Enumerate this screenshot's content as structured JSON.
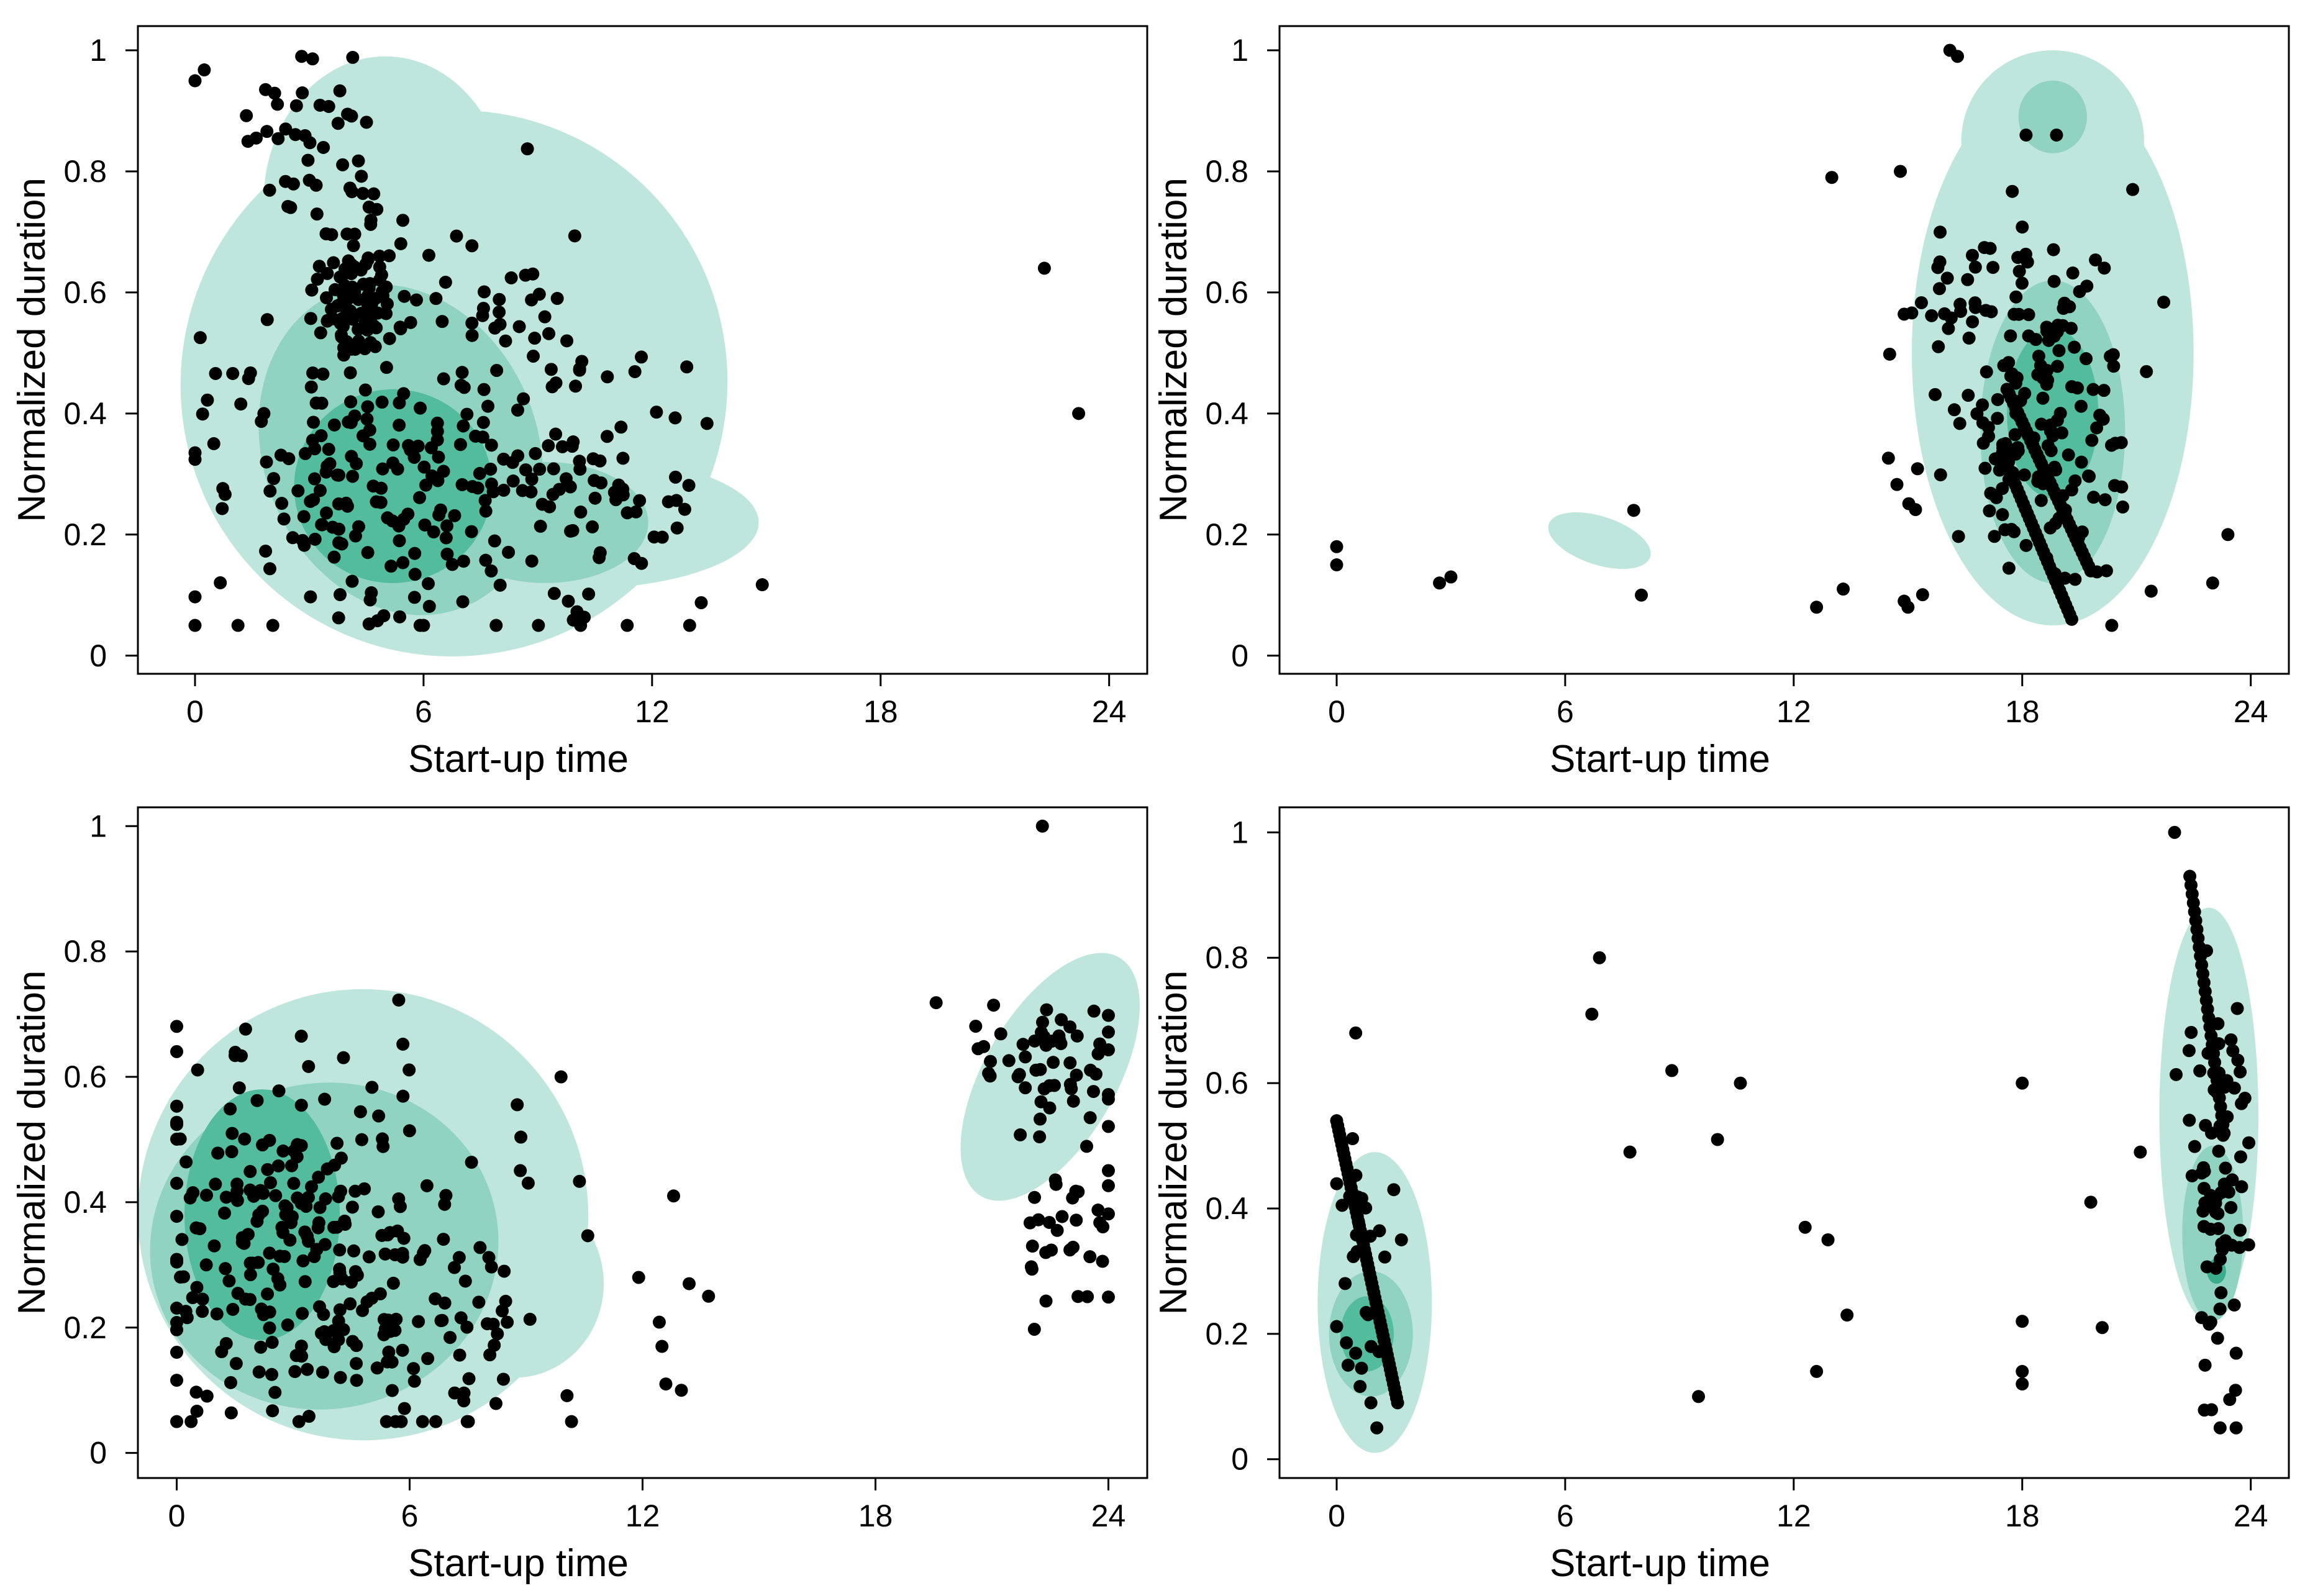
{
  "figure": {
    "panels": [
      "top-left",
      "top-right",
      "bottom-left",
      "bottom-right"
    ]
  },
  "colors": {
    "density_light": "#bfe6dc",
    "density_mid": "#8fd3c0",
    "density_dark": "#52bc9d",
    "density_core": "#3aae8c",
    "points": "#000000",
    "frame": "#000000"
  },
  "chart_data": [
    {
      "type": "scatter",
      "panel": "top-left",
      "xlabel": "Start-up time",
      "ylabel": "Normalized duration",
      "xlim": [
        -1.5,
        25
      ],
      "ylim": [
        -0.03,
        1.04
      ],
      "xticks": [
        0,
        6,
        12,
        18,
        24
      ],
      "xtick_labels": [
        "0",
        "6",
        "12",
        "18",
        "24"
      ],
      "yticks": [
        0,
        0.2,
        0.4,
        0.6,
        0.8,
        1
      ],
      "ytick_labels": [
        "0",
        "0.2",
        "0.4",
        "0.6",
        "0.8",
        "1"
      ],
      "outliers": [
        [
          22.3,
          0.64
        ],
        [
          23.2,
          0.4
        ]
      ],
      "clusters": [
        {
          "cx": 4.3,
          "cy": 0.6,
          "sx": 0.5,
          "sy": 0.06,
          "n": 90,
          "seed": 11
        },
        {
          "cx": 4.5,
          "cy": 0.28,
          "sx": 2.3,
          "sy": 0.14,
          "n": 160,
          "seed": 12
        },
        {
          "cx": 9.5,
          "cy": 0.27,
          "sx": 2.3,
          "sy": 0.12,
          "n": 110,
          "seed": 13
        },
        {
          "cx": 3.6,
          "cy": 0.85,
          "sx": 1.4,
          "sy": 0.08,
          "n": 45,
          "seed": 14
        },
        {
          "cx": 8.2,
          "cy": 0.58,
          "sx": 1.5,
          "sy": 0.1,
          "n": 40,
          "seed": 15
        }
      ],
      "density_regions": [
        {
          "level": "light",
          "cx": 6.8,
          "cy": 0.45,
          "rx": 7.2,
          "ry": 0.45,
          "rot": 42
        },
        {
          "level": "light",
          "cx": 5.0,
          "cy": 0.75,
          "rx": 3.2,
          "ry": 0.24,
          "rot": 0
        },
        {
          "level": "light",
          "cx": 10.0,
          "cy": 0.22,
          "rx": 4.8,
          "ry": 0.11,
          "rot": 0
        },
        {
          "level": "mid",
          "cx": 5.4,
          "cy": 0.34,
          "rx": 3.6,
          "ry": 0.28,
          "rot": 22
        },
        {
          "level": "mid",
          "cx": 9.2,
          "cy": 0.22,
          "rx": 2.7,
          "ry": 0.1,
          "rot": 0
        },
        {
          "level": "dark",
          "cx": 5.2,
          "cy": 0.28,
          "rx": 2.6,
          "ry": 0.16,
          "rot": 8
        }
      ]
    },
    {
      "type": "scatter",
      "panel": "top-right",
      "xlabel": "Start-up time",
      "ylabel": "Normalized duration",
      "xlim": [
        -1.5,
        25
      ],
      "ylim": [
        -0.03,
        1.04
      ],
      "xticks": [
        0,
        6,
        12,
        18,
        24
      ],
      "xtick_labels": [
        "0",
        "6",
        "12",
        "18",
        "24"
      ],
      "yticks": [
        0,
        0.2,
        0.4,
        0.6,
        0.8,
        1
      ],
      "ytick_labels": [
        "0",
        "0.2",
        "0.4",
        "0.6",
        "0.8",
        "1"
      ],
      "outliers": [
        [
          0,
          0.18
        ],
        [
          0,
          0.15
        ],
        [
          2.7,
          0.12
        ],
        [
          3.0,
          0.13
        ],
        [
          7.8,
          0.24
        ],
        [
          8.0,
          0.1
        ],
        [
          12.6,
          0.08
        ],
        [
          13.3,
          0.11
        ],
        [
          13.0,
          0.79
        ],
        [
          14.8,
          0.8
        ],
        [
          16.1,
          1.0
        ],
        [
          16.3,
          0.99
        ],
        [
          18.1,
          0.86
        ],
        [
          18.9,
          0.86
        ],
        [
          20.9,
          0.77
        ],
        [
          23.4,
          0.2
        ],
        [
          23.0,
          0.12
        ],
        [
          15.0,
          0.08
        ],
        [
          14.9,
          0.09
        ]
      ],
      "lines": [
        {
          "x0": 17.6,
          "y0": 0.44,
          "x1": 19.8,
          "y1": 0.14,
          "n": 40
        },
        {
          "x0": 17.5,
          "y0": 0.33,
          "x1": 19.3,
          "y1": 0.06,
          "n": 35
        }
      ],
      "clusters": [
        {
          "cx": 18.5,
          "cy": 0.38,
          "sx": 1.3,
          "sy": 0.15,
          "n": 170,
          "seed": 21
        },
        {
          "cx": 16.0,
          "cy": 0.55,
          "sx": 0.8,
          "sy": 0.08,
          "n": 25,
          "seed": 22
        }
      ],
      "density_regions": [
        {
          "level": "light",
          "cx": 18.8,
          "cy": 0.5,
          "rx": 3.7,
          "ry": 0.45,
          "rot": 0
        },
        {
          "level": "light",
          "cx": 18.8,
          "cy": 0.85,
          "rx": 2.4,
          "ry": 0.15,
          "rot": 0
        },
        {
          "level": "light",
          "cx": 6.9,
          "cy": 0.19,
          "rx": 1.4,
          "ry": 0.04,
          "rot": -18
        },
        {
          "level": "mid",
          "cx": 18.8,
          "cy": 0.37,
          "rx": 1.9,
          "ry": 0.25,
          "rot": 0
        },
        {
          "level": "mid",
          "cx": 18.8,
          "cy": 0.89,
          "rx": 0.9,
          "ry": 0.06,
          "rot": 0
        },
        {
          "level": "dark",
          "cx": 18.8,
          "cy": 0.4,
          "rx": 1.2,
          "ry": 0.14,
          "rot": 0
        }
      ]
    },
    {
      "type": "scatter",
      "panel": "bottom-left",
      "xlabel": "Start-up time",
      "ylabel": "Normalized duration",
      "xlim": [
        -1.0,
        25
      ],
      "ylim": [
        -0.04,
        1.03
      ],
      "xticks": [
        0,
        6,
        12,
        18,
        24
      ],
      "xtick_labels": [
        "0",
        "6",
        "12",
        "18",
        "24"
      ],
      "yticks": [
        0,
        0.2,
        0.4,
        0.6,
        0.8,
        1
      ],
      "ytick_labels": [
        "0",
        "0.2",
        "0.4",
        "0.6",
        "0.8",
        "1"
      ],
      "outliers": [
        [
          22.3,
          1.0
        ],
        [
          12.8,
          0.41
        ],
        [
          12.5,
          0.17
        ],
        [
          12.6,
          0.11
        ],
        [
          13.0,
          0.1
        ],
        [
          13.2,
          0.27
        ],
        [
          13.7,
          0.25
        ],
        [
          11.9,
          0.28
        ],
        [
          9.9,
          0.6
        ]
      ],
      "clusters": [
        {
          "cx": 2.5,
          "cy": 0.33,
          "sx": 2.0,
          "sy": 0.16,
          "n": 210,
          "seed": 31
        },
        {
          "cx": 6.5,
          "cy": 0.25,
          "sx": 2.2,
          "sy": 0.13,
          "n": 90,
          "seed": 32
        },
        {
          "cx": 22.5,
          "cy": 0.62,
          "sx": 1.0,
          "sy": 0.05,
          "n": 50,
          "seed": 33
        },
        {
          "cx": 23.0,
          "cy": 0.38,
          "sx": 0.8,
          "sy": 0.12,
          "n": 40,
          "seed": 34
        }
      ],
      "density_regions": [
        {
          "level": "light",
          "cx": 4.8,
          "cy": 0.38,
          "rx": 5.8,
          "ry": 0.36,
          "rot": 20
        },
        {
          "level": "light",
          "cx": 8.7,
          "cy": 0.27,
          "rx": 2.3,
          "ry": 0.15,
          "rot": 0
        },
        {
          "level": "light",
          "cx": 22.5,
          "cy": 0.6,
          "rx": 1.7,
          "ry": 0.22,
          "rot": -30
        },
        {
          "level": "mid",
          "cx": 3.8,
          "cy": 0.33,
          "rx": 4.5,
          "ry": 0.26,
          "rot": 12
        },
        {
          "level": "dark",
          "cx": 2.2,
          "cy": 0.38,
          "rx": 2.0,
          "ry": 0.2,
          "rot": 0
        }
      ]
    },
    {
      "type": "scatter",
      "panel": "bottom-right",
      "xlabel": "Start-up time",
      "ylabel": "Normalized duration",
      "xlim": [
        -1.5,
        25
      ],
      "ylim": [
        -0.03,
        1.04
      ],
      "xticks": [
        0,
        6,
        12,
        18,
        24
      ],
      "xtick_labels": [
        "0",
        "6",
        "12",
        "18",
        "24"
      ],
      "yticks": [
        0,
        0.2,
        0.4,
        0.6,
        0.8,
        1
      ],
      "ytick_labels": [
        "0",
        "0.2",
        "0.4",
        "0.6",
        "0.8",
        "1"
      ],
      "outliers": [
        [
          0.5,
          0.68
        ],
        [
          6.9,
          0.8
        ],
        [
          6.7,
          0.71
        ],
        [
          7.7,
          0.49
        ],
        [
          8.8,
          0.62
        ],
        [
          9.5,
          0.1
        ],
        [
          10.0,
          0.51
        ],
        [
          10.6,
          0.6
        ],
        [
          12.3,
          0.37
        ],
        [
          12.6,
          0.14
        ],
        [
          12.9,
          0.35
        ],
        [
          13.4,
          0.23
        ],
        [
          18.0,
          0.6
        ],
        [
          18.0,
          0.22
        ],
        [
          18.0,
          0.14
        ],
        [
          18.0,
          0.12
        ],
        [
          19.8,
          0.41
        ],
        [
          20.1,
          0.21
        ],
        [
          21.1,
          0.49
        ],
        [
          22.0,
          1.0
        ],
        [
          22.8,
          0.15
        ],
        [
          23.6,
          0.11
        ],
        [
          1.5,
          0.43
        ],
        [
          1.7,
          0.35
        ],
        [
          0.3,
          0.15
        ],
        [
          0.9,
          0.09
        ]
      ],
      "lines": [
        {
          "x0": 0,
          "y0": 0.54,
          "x1": 1.6,
          "y1": 0.09,
          "n": 60
        },
        {
          "x0": 22.4,
          "y0": 0.93,
          "x1": 23.3,
          "y1": 0.52,
          "n": 30
        }
      ],
      "clusters": [
        {
          "cx": 0.6,
          "cy": 0.3,
          "sx": 0.4,
          "sy": 0.12,
          "n": 30,
          "seed": 41
        },
        {
          "cx": 23.1,
          "cy": 0.45,
          "sx": 0.45,
          "sy": 0.18,
          "n": 80,
          "seed": 42
        }
      ],
      "density_regions": [
        {
          "level": "light",
          "cx": 1.0,
          "cy": 0.25,
          "rx": 1.5,
          "ry": 0.24,
          "rot": 0
        },
        {
          "level": "light",
          "cx": 22.9,
          "cy": 0.55,
          "rx": 1.3,
          "ry": 0.33,
          "rot": 0
        },
        {
          "level": "mid",
          "cx": 0.9,
          "cy": 0.2,
          "rx": 1.1,
          "ry": 0.1,
          "rot": 0
        },
        {
          "level": "mid",
          "cx": 23.0,
          "cy": 0.36,
          "rx": 0.8,
          "ry": 0.14,
          "rot": 0
        },
        {
          "level": "dark",
          "cx": 0.8,
          "cy": 0.2,
          "rx": 0.7,
          "ry": 0.06,
          "rot": 0
        },
        {
          "level": "core",
          "cx": 23.1,
          "cy": 0.3,
          "rx": 0.25,
          "ry": 0.02,
          "rot": 0
        }
      ]
    }
  ]
}
